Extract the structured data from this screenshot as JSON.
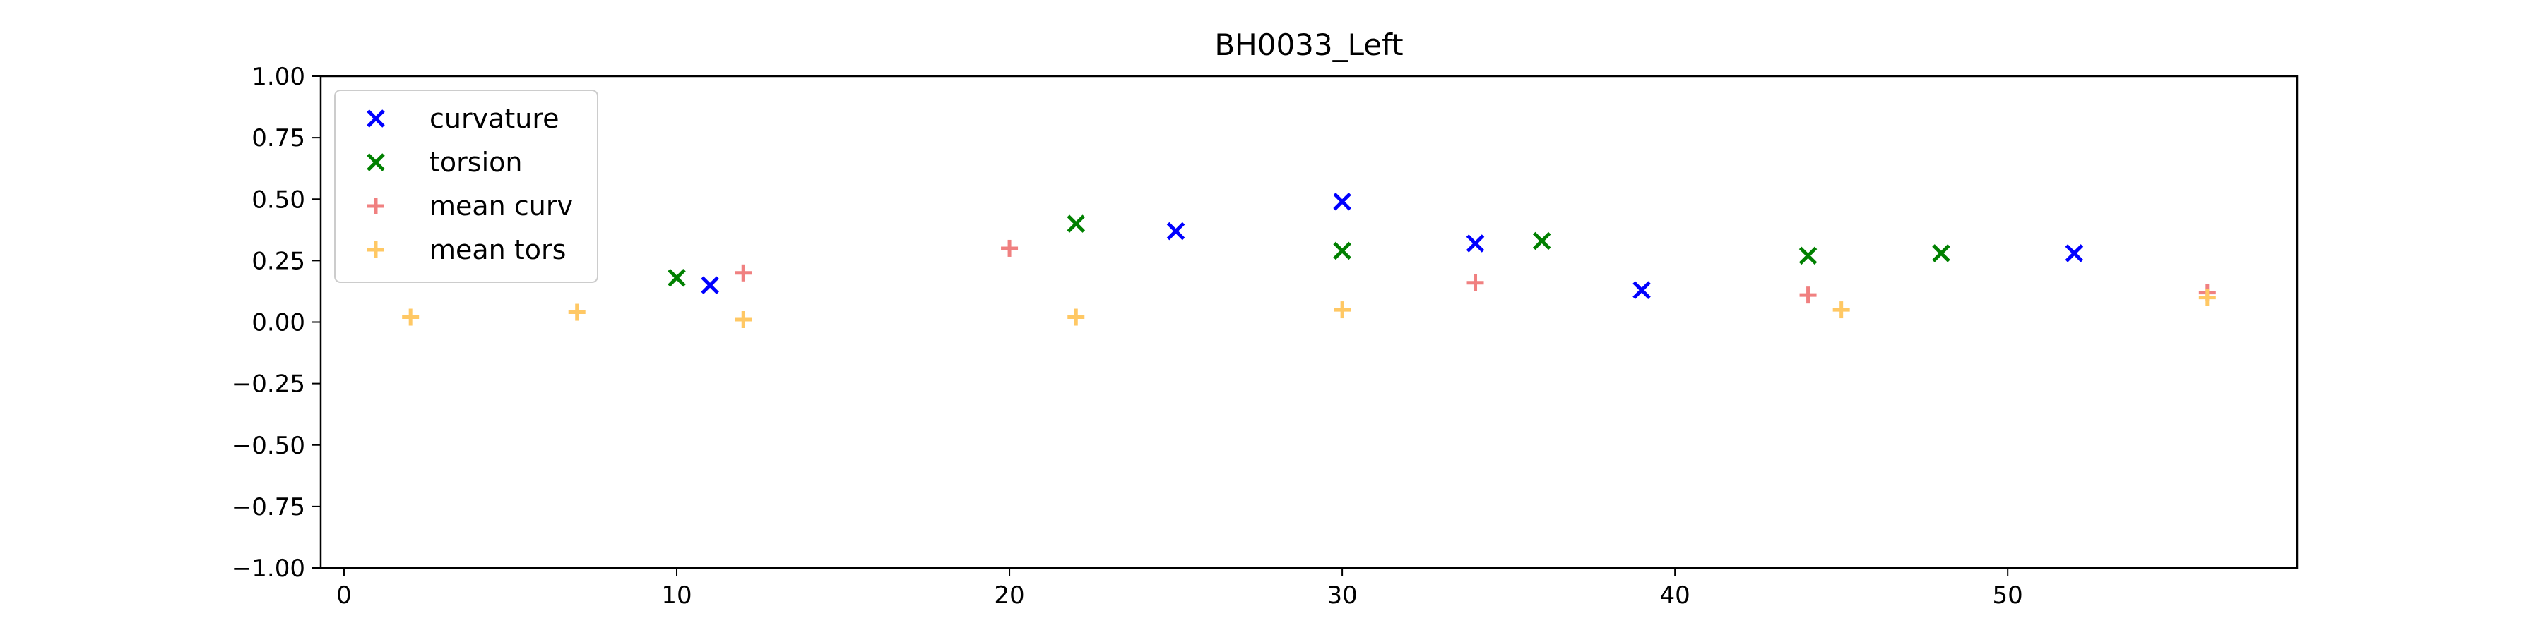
{
  "chart_data": {
    "type": "scatter",
    "title": "BH0033_Left",
    "xlabel": "",
    "ylabel": "",
    "xlim": [
      -0.7,
      58.7
    ],
    "ylim": [
      -1.0,
      1.0
    ],
    "xticks": [
      0,
      10,
      20,
      30,
      40,
      50
    ],
    "xtick_labels": [
      "0",
      "10",
      "20",
      "30",
      "40",
      "50"
    ],
    "yticks": [
      -1.0,
      -0.75,
      -0.5,
      -0.25,
      0.0,
      0.25,
      0.5,
      0.75,
      1.0
    ],
    "ytick_labels": [
      "−1.00",
      "−0.75",
      "−0.50",
      "−0.25",
      "0.00",
      "0.25",
      "0.50",
      "0.75",
      "1.00"
    ],
    "grid": false,
    "legend_position": "top-left",
    "series": [
      {
        "name": "curvature",
        "marker": "x",
        "color": "#0000ff",
        "points": [
          [
            11,
            0.15
          ],
          [
            25,
            0.37
          ],
          [
            30,
            0.49
          ],
          [
            34,
            0.32
          ],
          [
            39,
            0.13
          ],
          [
            52,
            0.28
          ]
        ]
      },
      {
        "name": "torsion",
        "marker": "x",
        "color": "#008000",
        "points": [
          [
            10,
            0.18
          ],
          [
            22,
            0.4
          ],
          [
            30,
            0.29
          ],
          [
            36,
            0.33
          ],
          [
            44,
            0.27
          ],
          [
            48,
            0.28
          ]
        ]
      },
      {
        "name": "mean curv",
        "marker": "+",
        "color": "#f08080",
        "points": [
          [
            12,
            0.2
          ],
          [
            20,
            0.3
          ],
          [
            34,
            0.16
          ],
          [
            44,
            0.11
          ],
          [
            56,
            0.12
          ]
        ]
      },
      {
        "name": "mean tors",
        "marker": "+",
        "color": "#ffc864",
        "points": [
          [
            2,
            0.02
          ],
          [
            7,
            0.04
          ],
          [
            12,
            0.01
          ],
          [
            22,
            0.02
          ],
          [
            30,
            0.05
          ],
          [
            45,
            0.05
          ],
          [
            56,
            0.1
          ]
        ]
      }
    ]
  }
}
